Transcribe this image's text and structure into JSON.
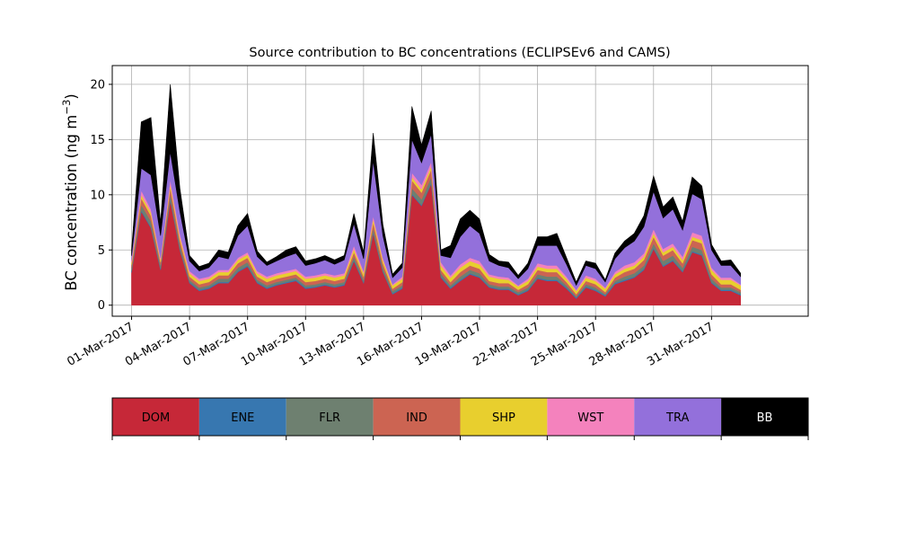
{
  "chart_data": {
    "type": "area",
    "title": "Source contribution to BC concentrations (ECLIPSEv6 and CAMS)",
    "ylabel": "BC concentration (ng m",
    "ylabel_exp": "−3",
    "ylabel_close": ")",
    "xlabel": "",
    "xlim": [
      "2017-02-28",
      "2017-04-04"
    ],
    "ylim": [
      -1,
      21.7
    ],
    "grid": true,
    "yticks": [
      0,
      5,
      10,
      15,
      20
    ],
    "xticks": [
      "01-Mar-2017",
      "04-Mar-2017",
      "07-Mar-2017",
      "10-Mar-2017",
      "13-Mar-2017",
      "16-Mar-2017",
      "19-Mar-2017",
      "22-Mar-2017",
      "25-Mar-2017",
      "28-Mar-2017",
      "31-Mar-2017"
    ],
    "x": [
      "2017-03-01",
      "2017-03-01.5",
      "2017-03-02",
      "2017-03-02.5",
      "2017-03-03",
      "2017-03-03.5",
      "2017-03-04",
      "2017-03-04.5",
      "2017-03-05",
      "2017-03-05.5",
      "2017-03-06",
      "2017-03-06.5",
      "2017-03-07",
      "2017-03-07.5",
      "2017-03-08",
      "2017-03-08.5",
      "2017-03-09",
      "2017-03-09.5",
      "2017-03-10",
      "2017-03-10.5",
      "2017-03-11",
      "2017-03-11.5",
      "2017-03-12",
      "2017-03-12.5",
      "2017-03-13",
      "2017-03-13.5",
      "2017-03-14",
      "2017-03-14.5",
      "2017-03-15",
      "2017-03-15.5",
      "2017-03-16",
      "2017-03-16.5",
      "2017-03-17",
      "2017-03-17.5",
      "2017-03-18",
      "2017-03-18.5",
      "2017-03-19",
      "2017-03-19.5",
      "2017-03-20",
      "2017-03-20.5",
      "2017-03-21",
      "2017-03-21.5",
      "2017-03-22",
      "2017-03-22.5",
      "2017-03-23",
      "2017-03-23.5",
      "2017-03-24",
      "2017-03-24.5",
      "2017-03-25",
      "2017-03-25.5",
      "2017-03-26",
      "2017-03-26.5",
      "2017-03-27",
      "2017-03-27.5",
      "2017-03-28",
      "2017-03-28.5",
      "2017-03-29",
      "2017-03-29.5",
      "2017-03-30",
      "2017-03-30.5",
      "2017-03-31",
      "2017-03-31.5",
      "2017-04-01",
      "2017-04-01.5"
    ],
    "x_days": [
      0,
      0.5,
      1,
      1.5,
      2,
      2.5,
      3,
      3.5,
      4,
      4.5,
      5,
      5.5,
      6,
      6.5,
      7,
      7.5,
      8,
      8.5,
      9,
      9.5,
      10,
      10.5,
      11,
      11.5,
      12,
      12.5,
      13,
      13.5,
      14,
      14.5,
      15,
      15.5,
      16,
      16.5,
      17,
      17.5,
      18,
      18.5,
      19,
      19.5,
      20,
      20.5,
      21,
      21.5,
      22,
      22.5,
      23,
      23.5,
      24,
      24.5,
      25,
      25.5,
      26,
      26.5,
      27,
      27.5,
      28,
      28.5,
      29,
      29.5,
      30,
      30.5,
      31,
      31.5
    ],
    "series": [
      {
        "name": "DOM",
        "color": "#c62838",
        "values": [
          3,
          8.5,
          7,
          3.2,
          9.5,
          5,
          2,
          1.3,
          1.5,
          2,
          2,
          3,
          3.5,
          2,
          1.5,
          1.8,
          2,
          2.2,
          1.5,
          1.6,
          1.8,
          1.6,
          1.8,
          4,
          2,
          6.5,
          3,
          1,
          1.5,
          10,
          9,
          11,
          2.5,
          1.5,
          2.2,
          2.8,
          2.5,
          1.6,
          1.4,
          1.4,
          0.9,
          1.3,
          2.4,
          2.2,
          2.2,
          1.5,
          0.6,
          1.6,
          1.3,
          0.8,
          1.9,
          2.2,
          2.5,
          3.2,
          5.1,
          3.5,
          4,
          3,
          4.8,
          4.5,
          2,
          1.3,
          1.3,
          0.9
        ]
      },
      {
        "name": "ENE",
        "color": "#3777b0",
        "values": [
          0.1,
          0.1,
          0.1,
          0.1,
          0.1,
          0.1,
          0.1,
          0.1,
          0.1,
          0.1,
          0.1,
          0.1,
          0.1,
          0.1,
          0.1,
          0.1,
          0.1,
          0.1,
          0.1,
          0.1,
          0.1,
          0.1,
          0.1,
          0.1,
          0.1,
          0.1,
          0.1,
          0.1,
          0.1,
          0.1,
          0.1,
          0.1,
          0.1,
          0.1,
          0.1,
          0.1,
          0.1,
          0.1,
          0.1,
          0.1,
          0.1,
          0.1,
          0.1,
          0.1,
          0.1,
          0.1,
          0.1,
          0.1,
          0.1,
          0.1,
          0.1,
          0.1,
          0.1,
          0.1,
          0.1,
          0.1,
          0.1,
          0.1,
          0.1,
          0.1,
          0.1,
          0.1,
          0.1,
          0.1
        ]
      },
      {
        "name": "FLR",
        "color": "#6e8070",
        "values": [
          0.3,
          0.5,
          0.5,
          0.3,
          0.5,
          0.4,
          0.2,
          0.2,
          0.2,
          0.3,
          0.3,
          0.3,
          0.3,
          0.2,
          0.2,
          0.2,
          0.2,
          0.2,
          0.2,
          0.2,
          0.2,
          0.2,
          0.2,
          0.3,
          0.2,
          0.4,
          0.3,
          0.2,
          0.2,
          0.5,
          0.5,
          0.5,
          0.3,
          0.2,
          0.3,
          0.3,
          0.3,
          0.2,
          0.2,
          0.2,
          0.2,
          0.2,
          0.3,
          0.3,
          0.3,
          0.2,
          0.1,
          0.2,
          0.2,
          0.1,
          0.2,
          0.3,
          0.3,
          0.3,
          0.4,
          0.4,
          0.4,
          0.3,
          0.4,
          0.4,
          0.3,
          0.2,
          0.2,
          0.2
        ]
      },
      {
        "name": "IND",
        "color": "#cc6452",
        "values": [
          0.3,
          0.6,
          0.5,
          0.3,
          0.6,
          0.4,
          0.3,
          0.3,
          0.3,
          0.3,
          0.3,
          0.4,
          0.4,
          0.3,
          0.3,
          0.3,
          0.3,
          0.3,
          0.3,
          0.3,
          0.3,
          0.3,
          0.3,
          0.4,
          0.3,
          0.5,
          0.4,
          0.2,
          0.3,
          0.7,
          0.6,
          0.7,
          0.3,
          0.3,
          0.4,
          0.4,
          0.4,
          0.3,
          0.3,
          0.3,
          0.2,
          0.3,
          0.4,
          0.4,
          0.4,
          0.3,
          0.2,
          0.3,
          0.3,
          0.2,
          0.3,
          0.4,
          0.4,
          0.5,
          0.6,
          0.5,
          0.5,
          0.4,
          0.6,
          0.6,
          0.4,
          0.3,
          0.3,
          0.2
        ]
      },
      {
        "name": "SHP",
        "color": "#e8cf2e",
        "values": [
          0.2,
          0.3,
          0.3,
          0.2,
          0.3,
          0.3,
          0.3,
          0.3,
          0.3,
          0.3,
          0.3,
          0.3,
          0.3,
          0.3,
          0.3,
          0.3,
          0.3,
          0.3,
          0.3,
          0.3,
          0.3,
          0.3,
          0.3,
          0.3,
          0.3,
          0.3,
          0.3,
          0.3,
          0.3,
          0.3,
          0.3,
          0.3,
          0.4,
          0.4,
          0.4,
          0.4,
          0.4,
          0.4,
          0.4,
          0.3,
          0.3,
          0.3,
          0.3,
          0.3,
          0.3,
          0.3,
          0.3,
          0.3,
          0.3,
          0.3,
          0.3,
          0.3,
          0.3,
          0.3,
          0.3,
          0.3,
          0.3,
          0.3,
          0.3,
          0.3,
          0.4,
          0.4,
          0.4,
          0.4
        ]
      },
      {
        "name": "WST",
        "color": "#f482bd",
        "values": [
          0.2,
          0.4,
          0.3,
          0.2,
          0.4,
          0.3,
          0.2,
          0.2,
          0.2,
          0.2,
          0.2,
          0.2,
          0.2,
          0.2,
          0.2,
          0.2,
          0.2,
          0.2,
          0.2,
          0.2,
          0.2,
          0.2,
          0.2,
          0.3,
          0.2,
          0.3,
          0.2,
          0.1,
          0.2,
          0.4,
          0.4,
          0.4,
          0.3,
          0.2,
          0.3,
          0.3,
          0.3,
          0.2,
          0.2,
          0.2,
          0.1,
          0.2,
          0.3,
          0.3,
          0.3,
          0.2,
          0.1,
          0.2,
          0.2,
          0.1,
          0.2,
          0.3,
          0.3,
          0.3,
          0.4,
          0.3,
          0.3,
          0.3,
          0.4,
          0.4,
          0.2,
          0.2,
          0.2,
          0.1
        ]
      },
      {
        "name": "TRA",
        "color": "#9370db",
        "values": [
          0.4,
          2,
          3.1,
          2,
          2.5,
          2,
          0.9,
          0.7,
          0.8,
          1.2,
          1,
          2,
          2.4,
          1.3,
          1,
          1.1,
          1.3,
          1.4,
          1,
          1.1,
          1.2,
          1,
          1.2,
          2,
          1.1,
          5,
          2,
          0.6,
          0.8,
          3,
          2,
          2.5,
          0.6,
          1.6,
          2.5,
          2.9,
          2.5,
          1.2,
          1,
          0.9,
          0.6,
          0.9,
          1.6,
          1.8,
          1.8,
          1.1,
          0.4,
          0.9,
          0.9,
          0.5,
          1.2,
          1.6,
          1.9,
          2.4,
          3.4,
          2.8,
          3.1,
          2.4,
          3.5,
          3.3,
          1.6,
          1.1,
          1.1,
          0.7
        ]
      },
      {
        "name": "BB",
        "color": "#000000",
        "values": [
          0.5,
          4.2,
          5.2,
          1.2,
          6.1,
          2.1,
          0.5,
          0.4,
          0.4,
          0.6,
          0.6,
          0.9,
          1.1,
          0.5,
          0.3,
          0.4,
          0.6,
          0.6,
          0.4,
          0.4,
          0.4,
          0.4,
          0.4,
          0.9,
          0.6,
          2.5,
          1,
          0.3,
          0.4,
          3,
          1.6,
          2.1,
          0.5,
          1.1,
          1.6,
          1.4,
          1.3,
          0.6,
          0.4,
          0.5,
          0.3,
          0.5,
          0.8,
          0.8,
          1.1,
          0.6,
          0.3,
          0.4,
          0.5,
          0.2,
          0.5,
          0.6,
          0.7,
          1,
          1.4,
          1,
          1.1,
          0.8,
          1.5,
          1.2,
          0.5,
          0.4,
          0.5,
          0.3
        ]
      }
    ],
    "legend_position": "below"
  }
}
